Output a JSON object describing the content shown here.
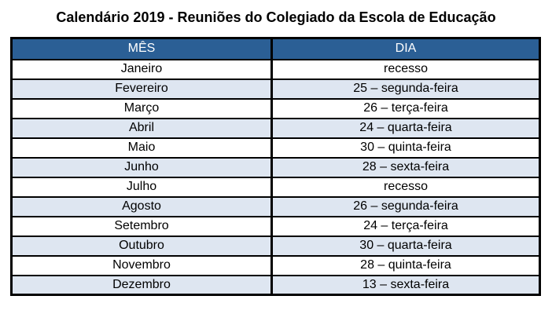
{
  "title": "Calendário 2019 - Reuniões do Colegiado da Escola de Educação",
  "table": {
    "headers": [
      "MÊS",
      "DIA"
    ],
    "rows": [
      {
        "mes": "Janeiro",
        "dia": "recesso"
      },
      {
        "mes": "Fevereiro",
        "dia": "25 – segunda-feira"
      },
      {
        "mes": "Março",
        "dia": "26 – terça-feira"
      },
      {
        "mes": "Abril",
        "dia": "24 – quarta-feira"
      },
      {
        "mes": "Maio",
        "dia": "30 – quinta-feira"
      },
      {
        "mes": "Junho",
        "dia": "28 – sexta-feira"
      },
      {
        "mes": "Julho",
        "dia": "recesso"
      },
      {
        "mes": "Agosto",
        "dia": "26 – segunda-feira"
      },
      {
        "mes": "Setembro",
        "dia": "24 – terça-feira"
      },
      {
        "mes": "Outubro",
        "dia": "30 – quarta-feira"
      },
      {
        "mes": "Novembro",
        "dia": "28 – quinta-feira"
      },
      {
        "mes": "Dezembro",
        "dia": "13 – sexta-feira"
      }
    ]
  },
  "colors": {
    "header_bg": "#2B5F95",
    "header_text": "#FFFFFF",
    "row_bg": "#FFFFFF",
    "row_alt_bg": "#DEE6F1",
    "border": "#000000",
    "title_text": "#000000"
  }
}
